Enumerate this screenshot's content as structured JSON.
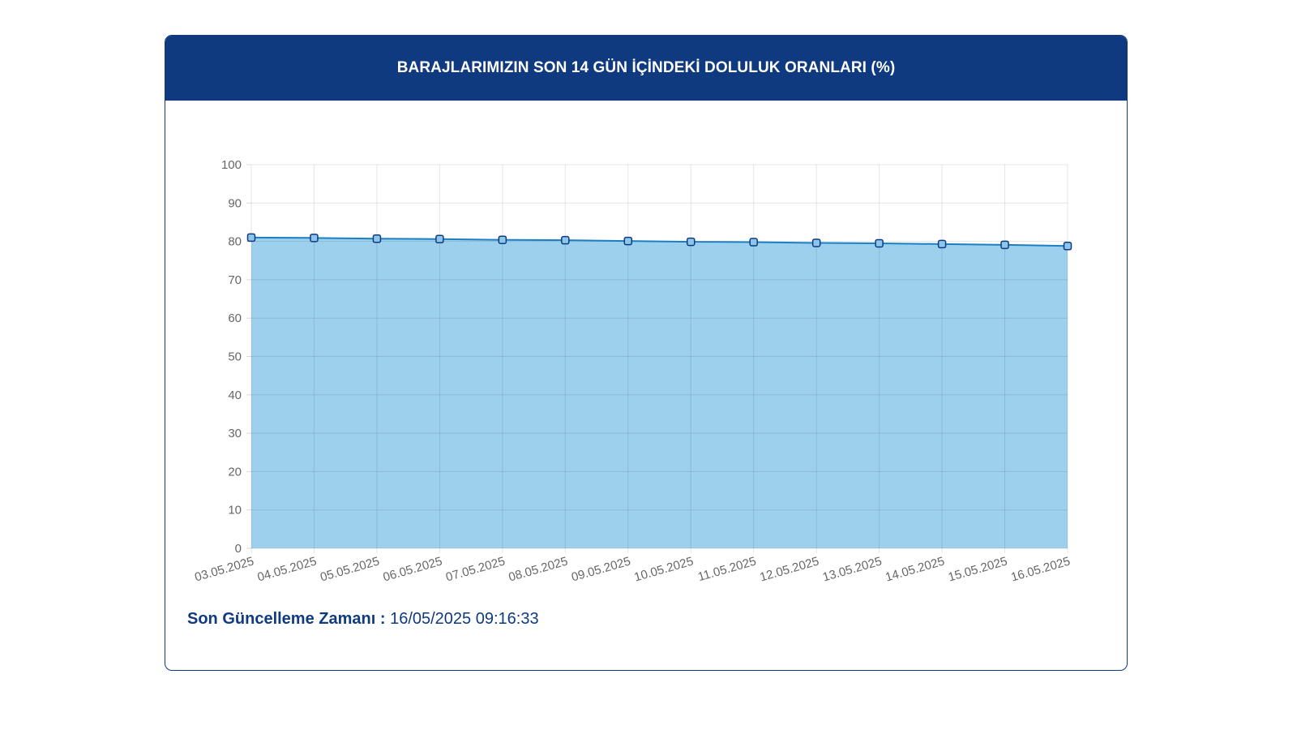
{
  "header": {
    "title": "BARAJLARIMIZIN SON 14 GÜN İÇİNDEKİ DOLULUK ORANLARI (%)"
  },
  "footer": {
    "label": "Son Güncelleme Zamanı :",
    "value": "16/05/2025 09:16:33"
  },
  "colors": {
    "header_bg": "#0f3a80",
    "area_fill": "#9dd0ec",
    "line": "#1b7fc4",
    "point_fill": "#8cc6ea",
    "point_stroke": "#0f3a80"
  },
  "chart_data": {
    "type": "area",
    "x": [
      "03.05.2025",
      "04.05.2025",
      "05.05.2025",
      "06.05.2025",
      "07.05.2025",
      "08.05.2025",
      "09.05.2025",
      "10.05.2025",
      "11.05.2025",
      "12.05.2025",
      "13.05.2025",
      "14.05.2025",
      "15.05.2025",
      "16.05.2025"
    ],
    "series": [
      {
        "values": [
          81.0,
          80.9,
          80.7,
          80.6,
          80.4,
          80.3,
          80.1,
          79.9,
          79.8,
          79.6,
          79.5,
          79.3,
          79.1,
          78.8
        ]
      }
    ],
    "ylim": [
      0,
      100
    ],
    "yticks": [
      "0",
      "10",
      "20",
      "30",
      "40",
      "50",
      "60",
      "70",
      "80",
      "90",
      "100"
    ],
    "xlabel": "",
    "ylabel": "",
    "grid": true,
    "legend": "none"
  }
}
